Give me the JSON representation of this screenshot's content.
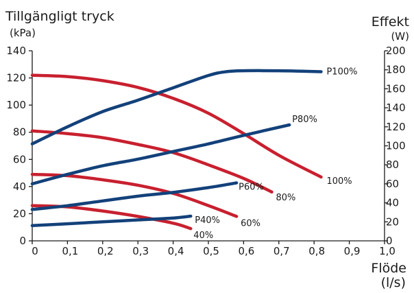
{
  "chart_data": {
    "type": "line",
    "title_left": "Tillgängligt tryck",
    "unit_left": "(kPa)",
    "title_right": "Effekt",
    "unit_right": "(W)",
    "xlabel": "Flöde",
    "xunit": "(l/s)",
    "xlim": [
      0,
      1.0
    ],
    "ylim_left": [
      0,
      140
    ],
    "ylim_right": [
      0,
      200
    ],
    "x_ticks": [
      "0",
      "0,1",
      "0,2",
      "0,3",
      "0,4",
      "0,5",
      "0,6",
      "0,7",
      "0,8",
      "0,9",
      "1,0"
    ],
    "y_left_ticks": [
      "0",
      "20",
      "40",
      "60",
      "80",
      "100",
      "120",
      "140"
    ],
    "y_right_ticks": [
      "0",
      "20",
      "40",
      "60",
      "80",
      "100",
      "120",
      "140",
      "160",
      "180",
      "200"
    ],
    "grid": false,
    "series": [
      {
        "name": "100%",
        "axis": "left",
        "color": "#c8202f",
        "x": [
          0,
          0.1,
          0.2,
          0.3,
          0.4,
          0.5,
          0.6,
          0.7,
          0.82
        ],
        "y": [
          122,
          121,
          118,
          113,
          105,
          94,
          79,
          63,
          47
        ]
      },
      {
        "name": "80%",
        "axis": "left",
        "color": "#c8202f",
        "x": [
          0,
          0.1,
          0.2,
          0.3,
          0.4,
          0.5,
          0.6,
          0.68
        ],
        "y": [
          81,
          79,
          76,
          71,
          65,
          56,
          46,
          36
        ]
      },
      {
        "name": "60%",
        "axis": "left",
        "color": "#c8202f",
        "x": [
          0,
          0.1,
          0.2,
          0.3,
          0.4,
          0.5,
          0.58
        ],
        "y": [
          49,
          48,
          45,
          41,
          35,
          26,
          18
        ]
      },
      {
        "name": "40%",
        "axis": "left",
        "color": "#c8202f",
        "x": [
          0,
          0.1,
          0.2,
          0.3,
          0.4,
          0.45
        ],
        "y": [
          26,
          25,
          22,
          18,
          13,
          9
        ]
      },
      {
        "name": "P100%",
        "axis": "right",
        "color": "#13417a",
        "x": [
          0,
          0.1,
          0.2,
          0.3,
          0.4,
          0.5,
          0.55,
          0.6,
          0.7,
          0.82
        ],
        "y": [
          102,
          120,
          136,
          148,
          161,
          174,
          178,
          179,
          179,
          178
        ]
      },
      {
        "name": "P80%",
        "axis": "right",
        "color": "#13417a",
        "x": [
          0,
          0.1,
          0.2,
          0.3,
          0.4,
          0.5,
          0.6,
          0.73
        ],
        "y": [
          60,
          70,
          79,
          86,
          94,
          102,
          111,
          122
        ]
      },
      {
        "name": "P60%",
        "axis": "right",
        "color": "#13417a",
        "x": [
          0,
          0.1,
          0.2,
          0.3,
          0.4,
          0.5,
          0.58
        ],
        "y": [
          33,
          37,
          42,
          47,
          51,
          56,
          61
        ]
      },
      {
        "name": "P40%",
        "axis": "right",
        "color": "#13417a",
        "x": [
          0,
          0.1,
          0.2,
          0.3,
          0.4,
          0.45
        ],
        "y": [
          16,
          18,
          20,
          22,
          24,
          26
        ]
      }
    ]
  }
}
